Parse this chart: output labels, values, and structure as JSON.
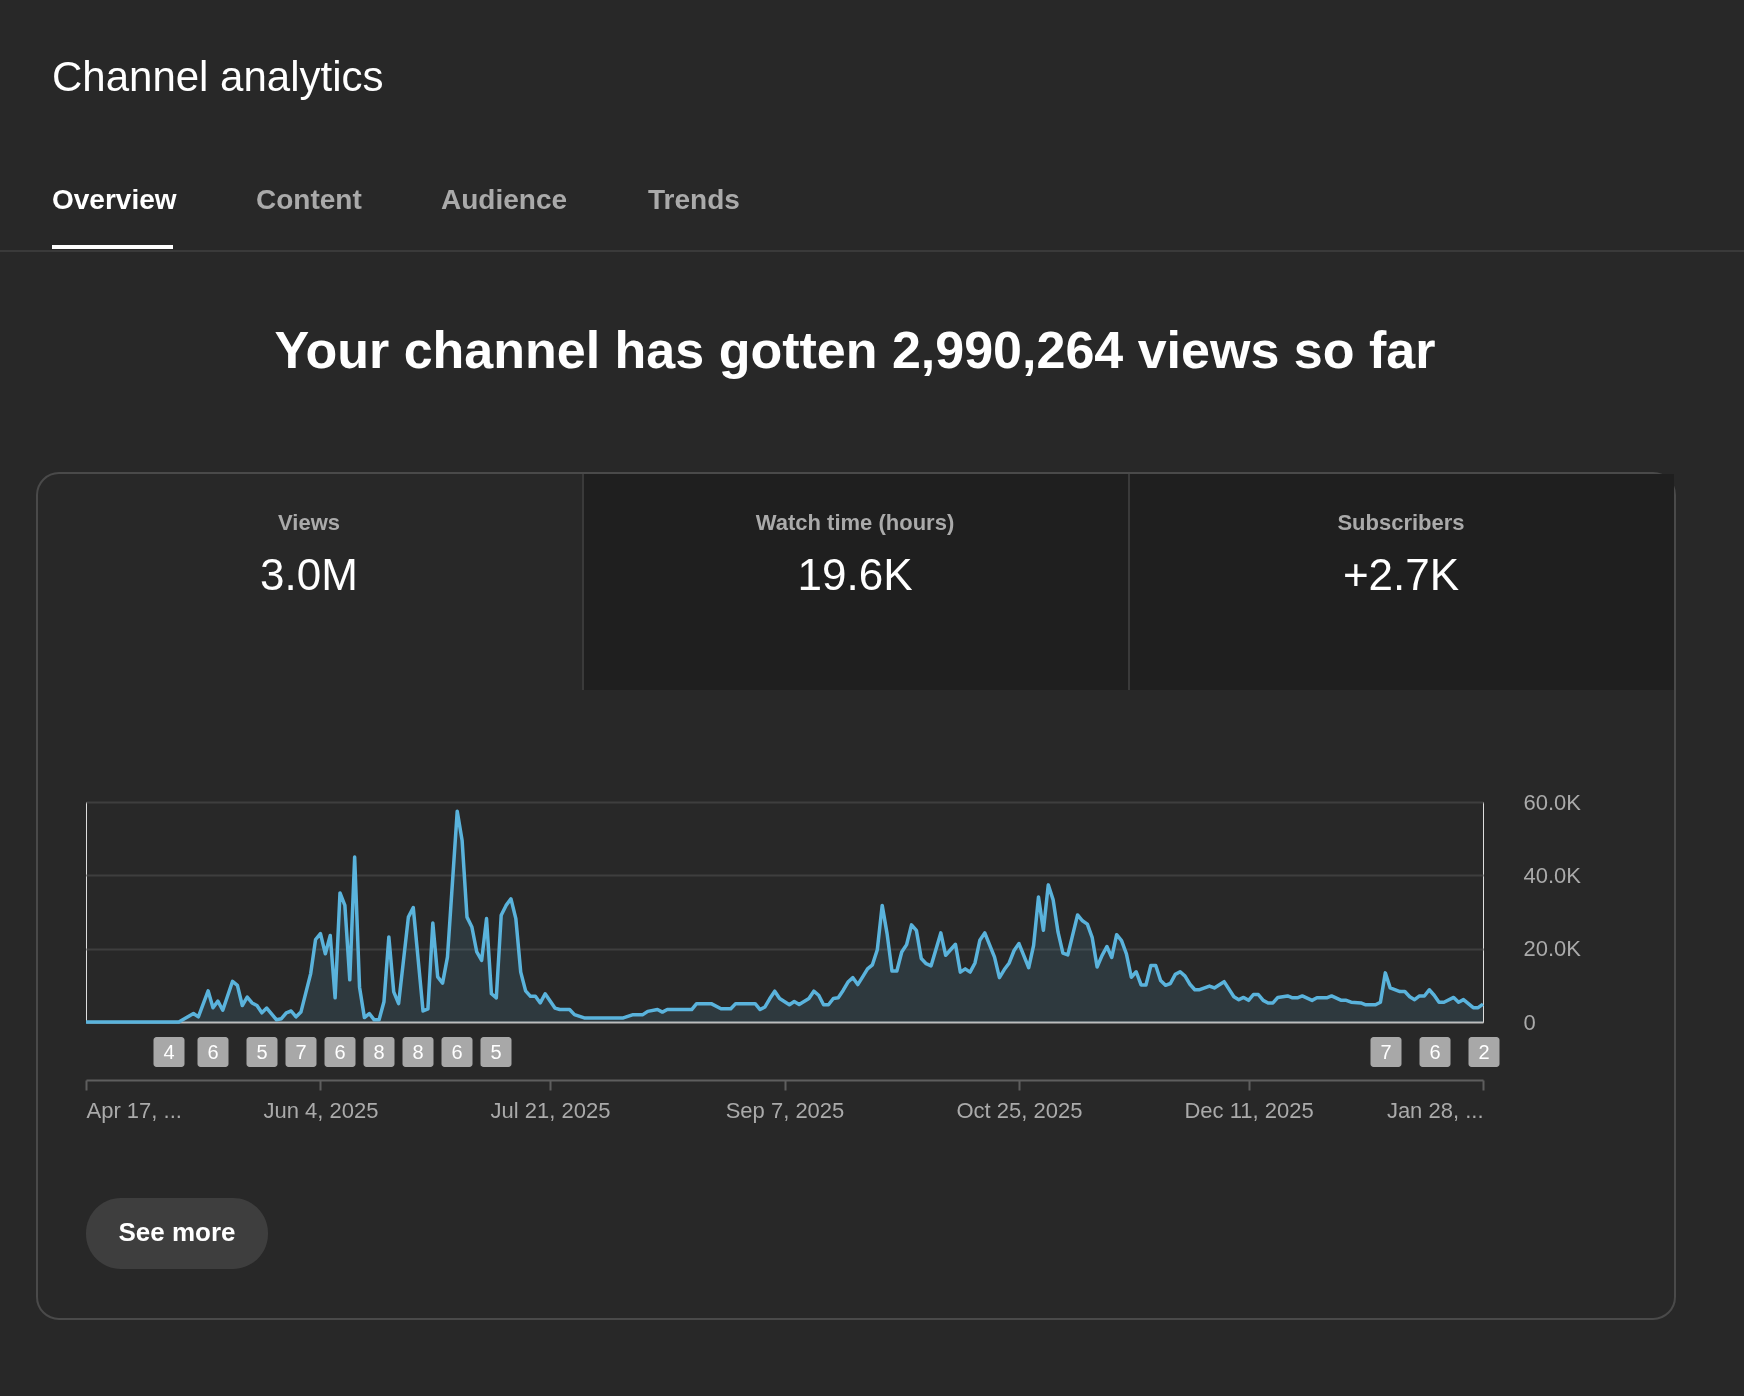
{
  "chart_data": {
    "type": "area",
    "title": "Channel analytics",
    "subtitle": "Your channel has gotten 2,990,264 views so far",
    "xlim": [
      "2025-04-17",
      "2026-01-28"
    ],
    "xticks": [
      {
        "value": "2025-04-17",
        "label": "Apr 17, ..."
      },
      {
        "value": "2025-06-04",
        "label": "Jun 4, 2025"
      },
      {
        "value": "2025-07-21",
        "label": "Jul 21, 2025"
      },
      {
        "value": "2025-09-07",
        "label": "Sep 7, 2025"
      },
      {
        "value": "2025-10-25",
        "label": "Oct 25, 2025"
      },
      {
        "value": "2025-12-11",
        "label": "Dec 11, 2025"
      },
      {
        "value": "2026-01-28",
        "label": "Jan 28, ..."
      }
    ],
    "ylim": [
      0,
      60000
    ],
    "yticks": [
      0,
      {
        "value": 20000,
        "label": "20.0K"
      },
      {
        "value": 40000,
        "label": "40.0K"
      },
      {
        "value": 60000,
        "label": "60.0K"
      }
    ],
    "grid": "y",
    "marker": "none",
    "line_style": "solid",
    "series": [
      {
        "color": "#5ab3dc",
        "x": [
          "2025-04-17",
          "2025-05-06",
          "2025-05-09",
          "2025-05-10",
          "2025-05-12",
          "2025-05-13",
          "2025-05-14",
          "2025-05-15",
          "2025-05-17",
          "2025-05-18",
          "2025-05-19",
          "2025-05-20",
          "2025-05-21",
          "2025-05-22",
          "2025-05-23",
          "2025-05-24",
          "2025-05-26",
          "2025-05-27",
          "2025-05-28",
          "2025-05-29",
          "2025-05-30",
          "2025-05-31",
          "2025-06-02",
          "2025-06-03",
          "2025-06-04",
          "2025-06-05",
          "2025-06-06",
          "2025-06-07",
          "2025-06-08",
          "2025-06-09",
          "2025-06-10",
          "2025-06-11",
          "2025-06-12",
          "2025-06-13",
          "2025-06-14",
          "2025-06-15",
          "2025-06-16",
          "2025-06-17",
          "2025-06-18",
          "2025-06-19",
          "2025-06-20",
          "2025-06-22",
          "2025-06-23",
          "2025-06-25",
          "2025-06-26",
          "2025-06-27",
          "2025-06-28",
          "2025-06-29",
          "2025-06-30",
          "2025-07-02",
          "2025-07-03",
          "2025-07-04",
          "2025-07-05",
          "2025-07-06",
          "2025-07-07",
          "2025-07-08",
          "2025-07-09",
          "2025-07-10",
          "2025-07-11",
          "2025-07-12",
          "2025-07-13",
          "2025-07-14",
          "2025-07-15",
          "2025-07-16",
          "2025-07-17",
          "2025-07-18",
          "2025-07-19",
          "2025-07-20",
          "2025-07-22",
          "2025-07-23",
          "2025-07-25",
          "2025-07-26",
          "2025-07-28",
          "2025-08-05",
          "2025-08-07",
          "2025-08-09",
          "2025-08-10",
          "2025-08-12",
          "2025-08-13",
          "2025-08-14",
          "2025-08-19",
          "2025-08-20",
          "2025-08-23",
          "2025-08-25",
          "2025-08-27",
          "2025-08-28",
          "2025-09-01",
          "2025-09-02",
          "2025-09-03",
          "2025-09-04",
          "2025-09-05",
          "2025-09-06",
          "2025-09-08",
          "2025-09-09",
          "2025-09-10",
          "2025-09-12",
          "2025-09-13",
          "2025-09-14",
          "2025-09-15",
          "2025-09-16",
          "2025-09-17",
          "2025-09-18",
          "2025-09-19",
          "2025-09-20",
          "2025-09-21",
          "2025-09-22",
          "2025-09-23",
          "2025-09-24",
          "2025-09-25",
          "2025-09-26",
          "2025-09-27",
          "2025-09-28",
          "2025-09-29",
          "2025-09-30",
          "2025-10-01",
          "2025-10-02",
          "2025-10-03",
          "2025-10-04",
          "2025-10-05",
          "2025-10-06",
          "2025-10-07",
          "2025-10-09",
          "2025-10-10",
          "2025-10-12",
          "2025-10-13",
          "2025-10-14",
          "2025-10-15",
          "2025-10-16",
          "2025-10-17",
          "2025-10-18",
          "2025-10-20",
          "2025-10-21",
          "2025-10-22",
          "2025-10-23",
          "2025-10-24",
          "2025-10-25",
          "2025-10-27",
          "2025-10-28",
          "2025-10-29",
          "2025-10-30",
          "2025-10-31",
          "2025-11-01",
          "2025-11-02",
          "2025-11-03",
          "2025-11-04",
          "2025-11-06",
          "2025-11-07",
          "2025-11-08",
          "2025-11-09",
          "2025-11-10",
          "2025-11-11",
          "2025-11-12",
          "2025-11-13",
          "2025-11-14",
          "2025-11-15",
          "2025-11-16",
          "2025-11-17",
          "2025-11-18",
          "2025-11-19",
          "2025-11-20",
          "2025-11-21",
          "2025-11-22",
          "2025-11-23",
          "2025-11-24",
          "2025-11-25",
          "2025-11-26",
          "2025-11-27",
          "2025-11-28",
          "2025-11-29",
          "2025-11-30",
          "2025-12-01",
          "2025-12-03",
          "2025-12-04",
          "2025-12-06",
          "2025-12-08",
          "2025-12-09",
          "2025-12-10",
          "2025-12-11",
          "2025-12-12",
          "2025-12-13",
          "2025-12-14",
          "2025-12-15",
          "2025-12-16",
          "2025-12-17",
          "2025-12-19",
          "2025-12-20",
          "2025-12-21",
          "2025-12-22",
          "2025-12-24",
          "2025-12-25",
          "2025-12-27",
          "2025-12-28",
          "2025-12-30",
          "2025-12-31",
          "2026-01-01",
          "2026-01-03",
          "2026-01-04",
          "2026-01-06",
          "2026-01-07",
          "2026-01-08",
          "2026-01-09",
          "2026-01-11",
          "2026-01-12",
          "2026-01-13",
          "2026-01-14",
          "2026-01-15",
          "2026-01-16",
          "2026-01-17",
          "2026-01-18",
          "2026-01-19",
          "2026-01-20",
          "2026-01-22",
          "2026-01-23",
          "2026-01-24",
          "2026-01-26",
          "2026-01-27",
          "2026-01-28"
        ],
        "values": [
          0,
          0,
          2300,
          1400,
          8500,
          3900,
          5700,
          3200,
          11100,
          10000,
          4500,
          6800,
          5200,
          4500,
          2500,
          3800,
          600,
          900,
          2500,
          3000,
          1400,
          2700,
          13200,
          22500,
          24100,
          18600,
          23600,
          6600,
          35200,
          31800,
          11500,
          45000,
          9500,
          1200,
          2300,
          600,
          600,
          5500,
          23200,
          8200,
          5000,
          28600,
          31200,
          3000,
          3600,
          27000,
          12300,
          10600,
          17700,
          57500,
          49500,
          28600,
          25900,
          19100,
          16800,
          28200,
          7700,
          6600,
          29100,
          31800,
          33600,
          28200,
          13600,
          8500,
          7000,
          7000,
          5200,
          7700,
          3800,
          3400,
          3400,
          2000,
          1100,
          1100,
          2000,
          2000,
          2900,
          3400,
          2700,
          3400,
          3400,
          5000,
          5000,
          3600,
          3600,
          5000,
          5000,
          3400,
          4100,
          6400,
          8400,
          6400,
          4700,
          5600,
          4800,
          6400,
          8400,
          7300,
          4700,
          4700,
          6400,
          6600,
          8600,
          10900,
          12100,
          10200,
          12300,
          14500,
          15600,
          19700,
          31800,
          24100,
          13900,
          13900,
          19100,
          21100,
          26500,
          25000,
          17300,
          15900,
          15300,
          24300,
          18200,
          21200,
          13600,
          14500,
          13600,
          16100,
          22300,
          24300,
          17700,
          12100,
          14300,
          16100,
          19500,
          21400,
          14800,
          20900,
          34100,
          25000,
          37400,
          33300,
          24500,
          18800,
          18300,
          29200,
          27600,
          26700,
          23000,
          15000,
          18100,
          20600,
          17600,
          23800,
          22200,
          18600,
          12200,
          13700,
          10100,
          10100,
          15400,
          15400,
          11300,
          10000,
          10500,
          13000,
          13700,
          12500,
          10300,
          8800,
          8800,
          9800,
          9300,
          11000,
          6900,
          6100,
          6700,
          5900,
          7500,
          7500,
          5900,
          5200,
          5200,
          6700,
          7100,
          6600,
          6600,
          7100,
          5900,
          6600,
          6600,
          7100,
          5900,
          5900,
          5400,
          5200,
          4700,
          4700,
          5400,
          13400,
          9300,
          8300,
          8300,
          6900,
          6100,
          7100,
          7100,
          8800,
          7300,
          5400,
          5400,
          6700,
          5400,
          6100,
          3900,
          3900,
          4900
        ]
      }
    ],
    "annotations": [
      "Overview",
      "Content",
      "Audience",
      "Trends",
      "Views",
      "3.0M",
      "Watch time (hours)",
      "19.6K",
      "Subscribers",
      "+2.7K",
      "See more",
      "4",
      "6",
      "5",
      "7",
      "6",
      "8",
      "8",
      "6",
      "5",
      "7",
      "6",
      "2"
    ]
  }
}
